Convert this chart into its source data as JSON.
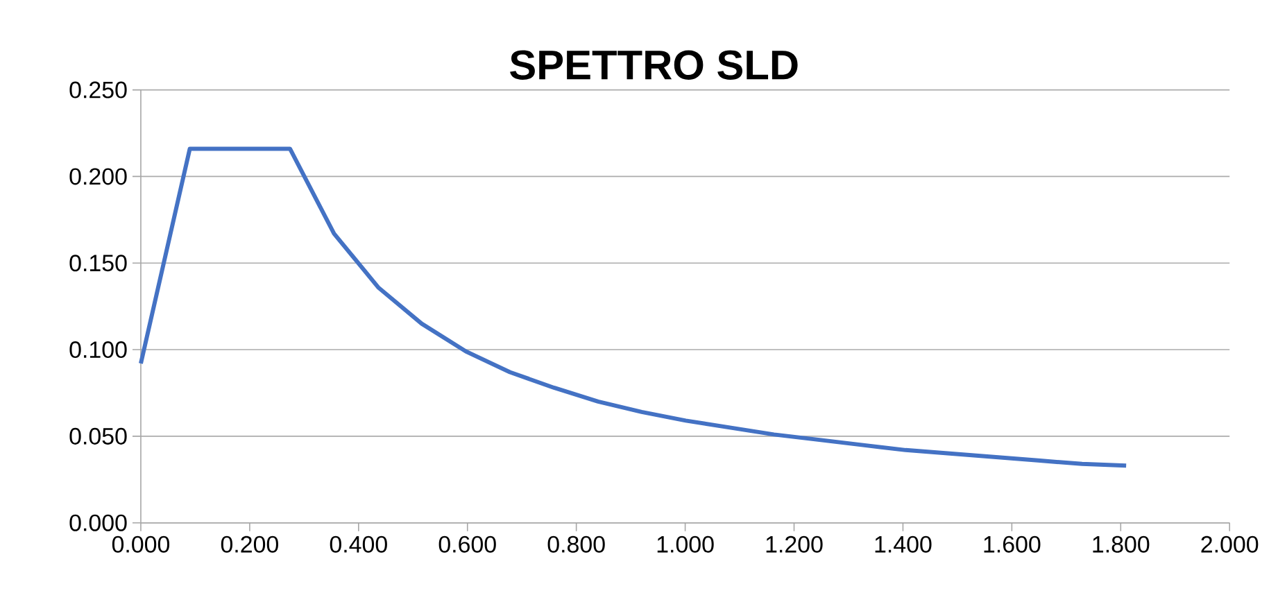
{
  "chart_data": {
    "type": "line",
    "title": "SPETTRO SLD",
    "series": [
      {
        "color": "#4472c4",
        "x": [
          0,
          0.09,
          0.274,
          0.355,
          0.436,
          0.516,
          0.597,
          0.678,
          0.759,
          0.84,
          0.92,
          1.001,
          1.082,
          1.163,
          1.244,
          1.324,
          1.405,
          1.486,
          1.567,
          1.648,
          1.729,
          1.81
        ],
        "values": [
          0.092,
          0.216,
          0.216,
          0.167,
          0.136,
          0.115,
          0.099,
          0.087,
          0.078,
          0.07,
          0.064,
          0.059,
          0.055,
          0.051,
          0.048,
          0.045,
          0.042,
          0.04,
          0.038,
          0.036,
          0.034,
          0.033
        ]
      }
    ],
    "xlim": [
      0,
      2
    ],
    "ylim": [
      0,
      0.25
    ],
    "xticks": [
      {
        "value": 0,
        "label": "0.000"
      },
      {
        "value": 0.2,
        "label": "0.200"
      },
      {
        "value": 0.4,
        "label": "0.400"
      },
      {
        "value": 0.6,
        "label": "0.600"
      },
      {
        "value": 0.8,
        "label": "0.800"
      },
      {
        "value": 1,
        "label": "1.000"
      },
      {
        "value": 1.2,
        "label": "1.200"
      },
      {
        "value": 1.4,
        "label": "1.400"
      },
      {
        "value": 1.6,
        "label": "1.600"
      },
      {
        "value": 1.8,
        "label": "1.800"
      },
      {
        "value": 2,
        "label": "2.000"
      }
    ],
    "yticks": [
      {
        "value": 0,
        "label": "0.000"
      },
      {
        "value": 0.05,
        "label": "0.050"
      },
      {
        "value": 0.1,
        "label": "0.100"
      },
      {
        "value": 0.15,
        "label": "0.150"
      },
      {
        "value": 0.2,
        "label": "0.200"
      },
      {
        "value": 0.25,
        "label": "0.250"
      }
    ],
    "grid": "y",
    "legend": false,
    "marker": "none",
    "line_style": "solid"
  }
}
